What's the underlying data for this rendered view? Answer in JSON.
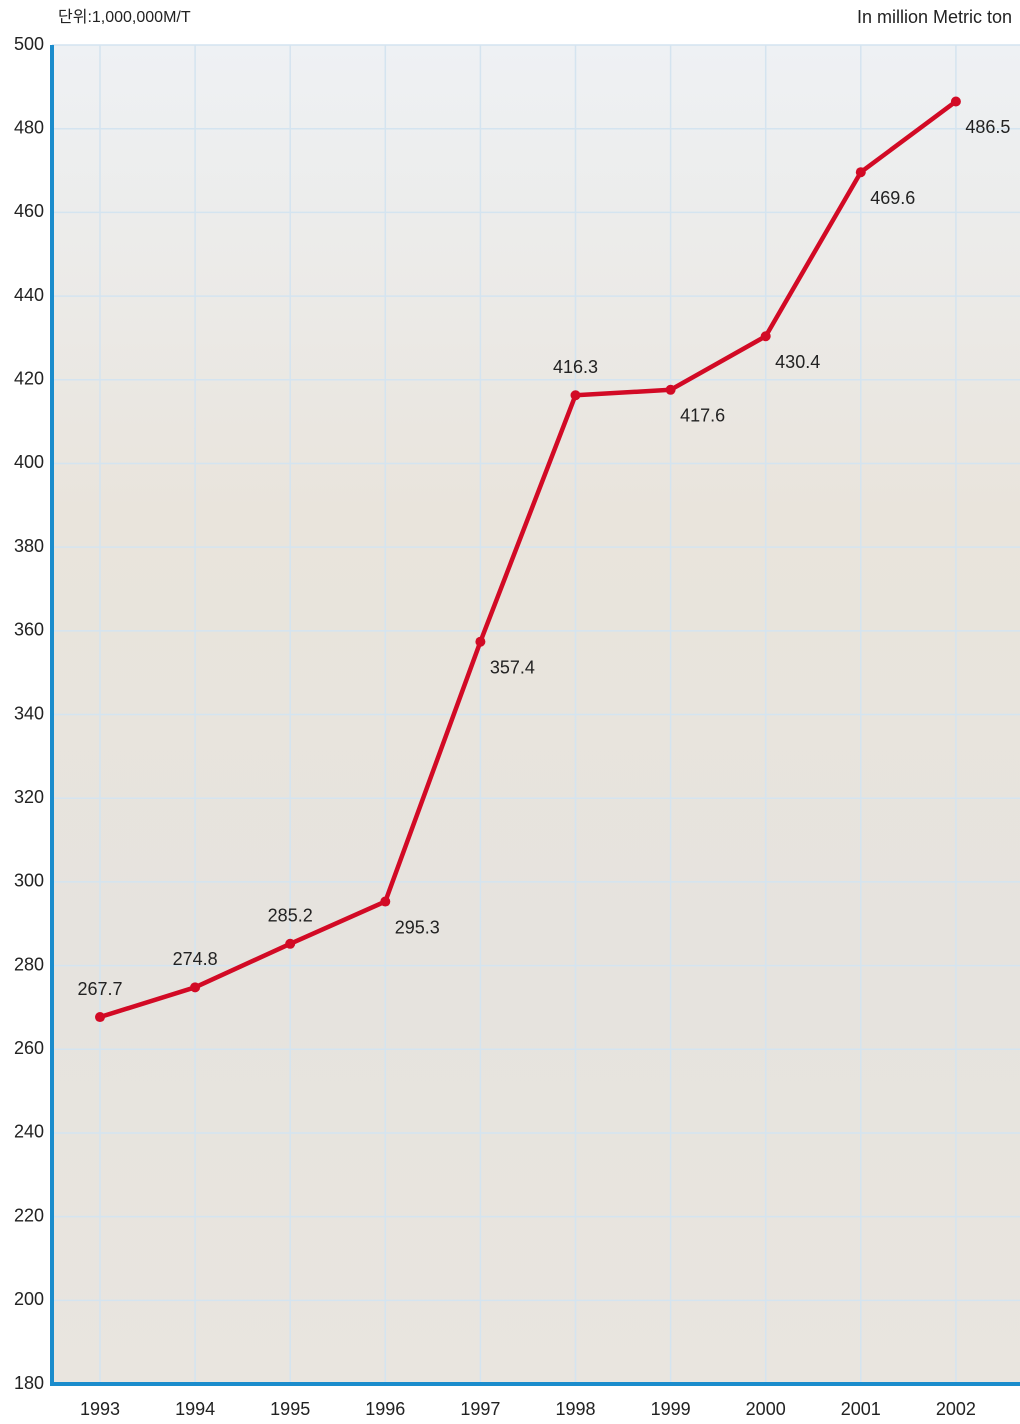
{
  "chart_data": {
    "type": "line",
    "unit_label": "단위:1,000,000M/T",
    "unit_label_en": "In million Metric ton",
    "categories": [
      "1993",
      "1994",
      "1995",
      "1996",
      "1997",
      "1998",
      "1999",
      "2000",
      "2001",
      "2002"
    ],
    "series": [
      {
        "color": "#d20a25",
        "values": [
          267.7,
          274.8,
          285.2,
          295.3,
          357.4,
          416.3,
          417.6,
          430.4,
          469.6,
          486.5
        ]
      }
    ],
    "ylim": [
      180,
      500
    ],
    "yticks": [
      180,
      200,
      220,
      240,
      260,
      280,
      300,
      320,
      340,
      360,
      380,
      400,
      420,
      440,
      460,
      480,
      500
    ],
    "grid": true,
    "axis_color": "#1b8ccc"
  }
}
